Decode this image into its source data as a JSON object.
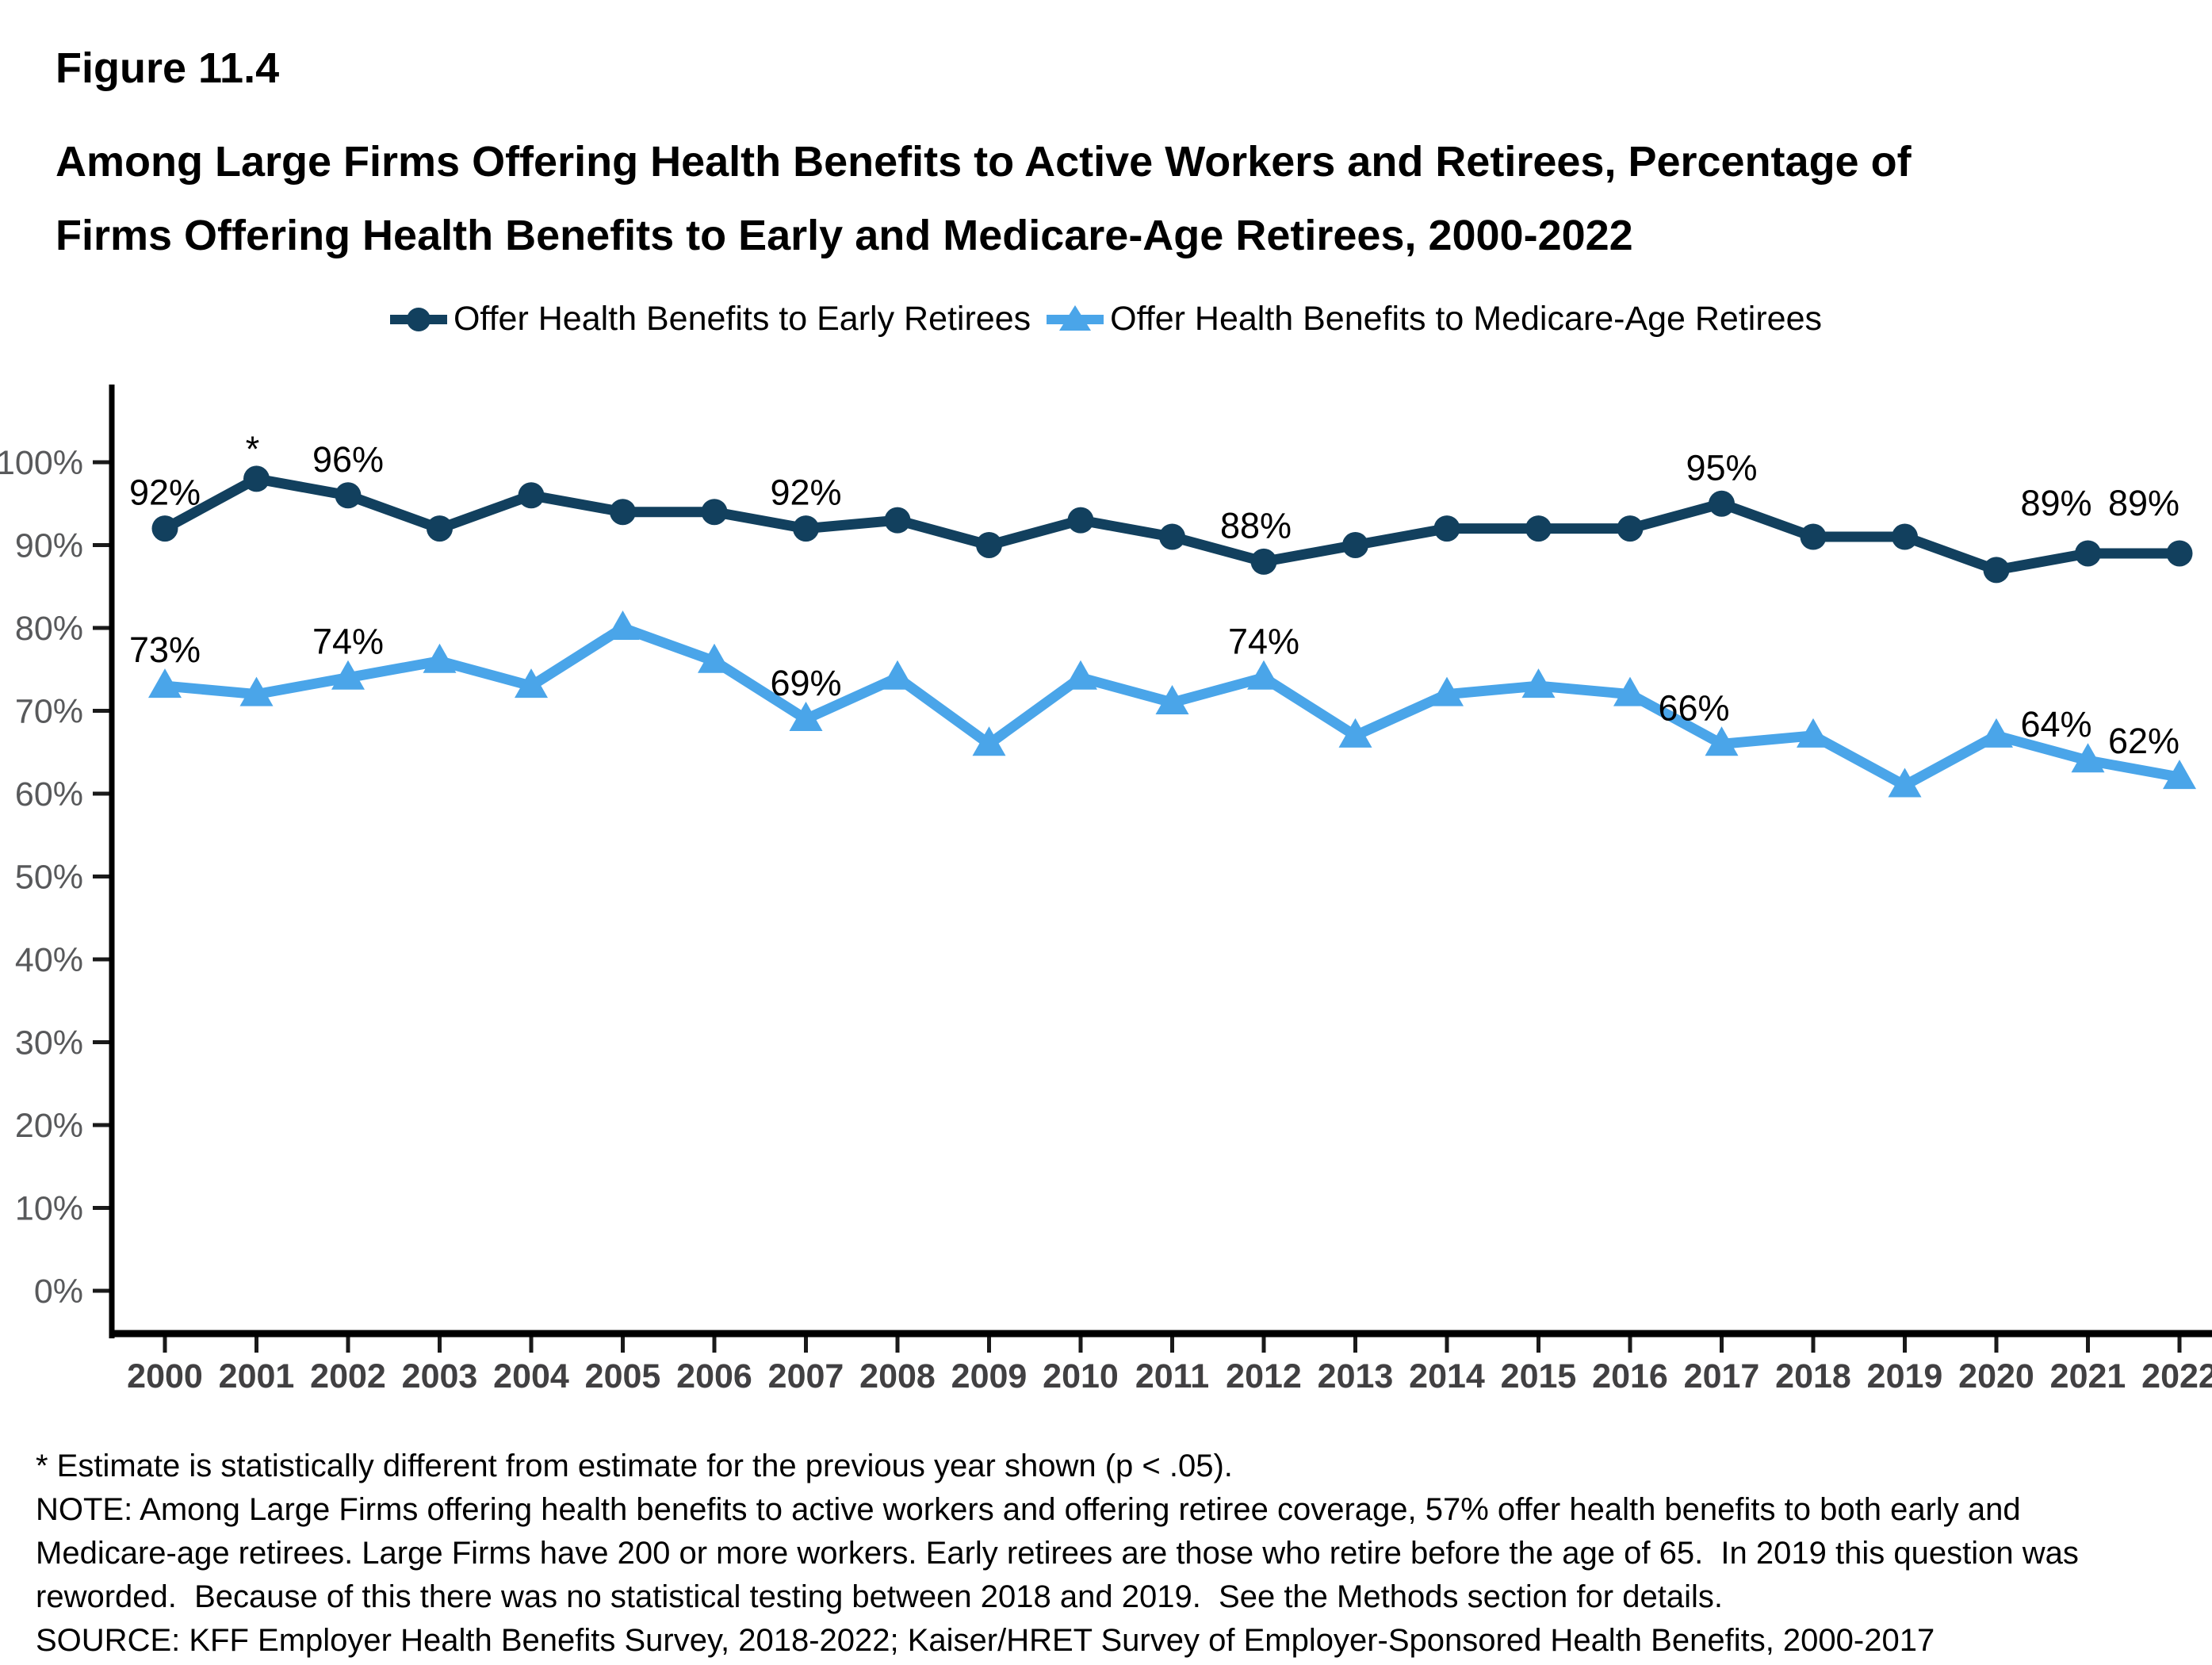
{
  "figure": {
    "label": "Figure 11.4",
    "title_line1": "Among Large Firms Offering Health Benefits to Active Workers and Retirees, Percentage of",
    "title_line2": "Firms Offering Health Benefits to Early and Medicare-Age Retirees, 2000-2022"
  },
  "legend": [
    {
      "label": "Offer Health Benefits to Early Retirees",
      "color": "#12405E",
      "marker": "circle"
    },
    {
      "label": "Offer Health Benefits to Medicare-Age Retirees",
      "color": "#4AA5E9",
      "marker": "triangle"
    }
  ],
  "chart_data": {
    "type": "line",
    "title": "Among Large Firms Offering Health Benefits to Active Workers and Retirees, Percentage of Firms Offering Health Benefits to Early and Medicare-Age Retirees, 2000-2022",
    "x": [
      2000,
      2001,
      2002,
      2003,
      2004,
      2005,
      2006,
      2007,
      2008,
      2009,
      2010,
      2011,
      2012,
      2013,
      2014,
      2015,
      2016,
      2017,
      2018,
      2019,
      2020,
      2021,
      2022
    ],
    "series": [
      {
        "name": "Offer Health Benefits to Early Retirees",
        "color": "#12405E",
        "marker": "circle",
        "values": [
          92,
          98,
          96,
          92,
          96,
          94,
          94,
          92,
          93,
          90,
          93,
          91,
          88,
          90,
          92,
          92,
          92,
          95,
          91,
          91,
          87,
          89,
          89
        ],
        "labeled_points": [
          {
            "year": 2000,
            "text": "92%",
            "dx": 0,
            "dy": 0
          },
          {
            "year": 2001,
            "text": "*",
            "dx": -5,
            "dy": 8
          },
          {
            "year": 2002,
            "text": "96%",
            "dx": 0,
            "dy": 0
          },
          {
            "year": 2007,
            "text": "92%",
            "dx": 0,
            "dy": 0
          },
          {
            "year": 2012,
            "text": "88%",
            "dx": -10,
            "dy": 0
          },
          {
            "year": 2017,
            "text": "95%",
            "dx": 0,
            "dy": 0
          },
          {
            "year": 2021,
            "text": "89%",
            "dx": -40,
            "dy": -18
          },
          {
            "year": 2022,
            "text": "89%",
            "dx": -45,
            "dy": -18
          }
        ]
      },
      {
        "name": "Offer Health Benefits to Medicare-Age Retirees",
        "color": "#4AA5E9",
        "marker": "triangle",
        "values": [
          73,
          72,
          74,
          76,
          73,
          80,
          76,
          69,
          74,
          66,
          74,
          71,
          74,
          67,
          72,
          73,
          72,
          66,
          67,
          61,
          67,
          64,
          62
        ],
        "labeled_points": [
          {
            "year": 2000,
            "text": "73%",
            "dx": 0,
            "dy": 0
          },
          {
            "year": 2002,
            "text": "74%",
            "dx": 0,
            "dy": 0
          },
          {
            "year": 2007,
            "text": "69%",
            "dx": 0,
            "dy": 0
          },
          {
            "year": 2012,
            "text": "74%",
            "dx": 0,
            "dy": 0
          },
          {
            "year": 2017,
            "text": "66%",
            "dx": -35,
            "dy": 0
          },
          {
            "year": 2021,
            "text": "64%",
            "dx": -40,
            "dy": 0
          },
          {
            "year": 2022,
            "text": "62%",
            "dx": -45,
            "dy": 0
          }
        ]
      }
    ],
    "xlabel": "",
    "ylabel": "",
    "yticks": [
      0,
      10,
      20,
      30,
      40,
      50,
      60,
      70,
      80,
      90,
      100
    ],
    "ytick_format": "{v}%",
    "ylim": [
      0,
      100
    ],
    "grid": false,
    "legend_position": "top",
    "significance_note_marker": "*"
  },
  "style": {
    "axis_color": "#000000",
    "ytick_label_color": "#58595B",
    "xtick_label_color": "#414042",
    "data_label_color": "#000000"
  },
  "footnotes": {
    "lines": [
      "* Estimate is statistically different from estimate for the previous year shown (p < .05).",
      "NOTE: Among Large Firms offering health benefits to active workers and offering retiree coverage, 57% offer health benefits to both early and",
      "Medicare-age retirees. Large Firms have 200 or more workers. Early retirees are those who retire before the age of 65.  In 2019 this question was",
      "reworded.  Because of this there was no statistical testing between 2018 and 2019.  See the Methods section for details.",
      "SOURCE: KFF Employer Health Benefits Survey, 2018-2022; Kaiser/HRET Survey of Employer-Sponsored Health Benefits, 2000-2017"
    ]
  }
}
